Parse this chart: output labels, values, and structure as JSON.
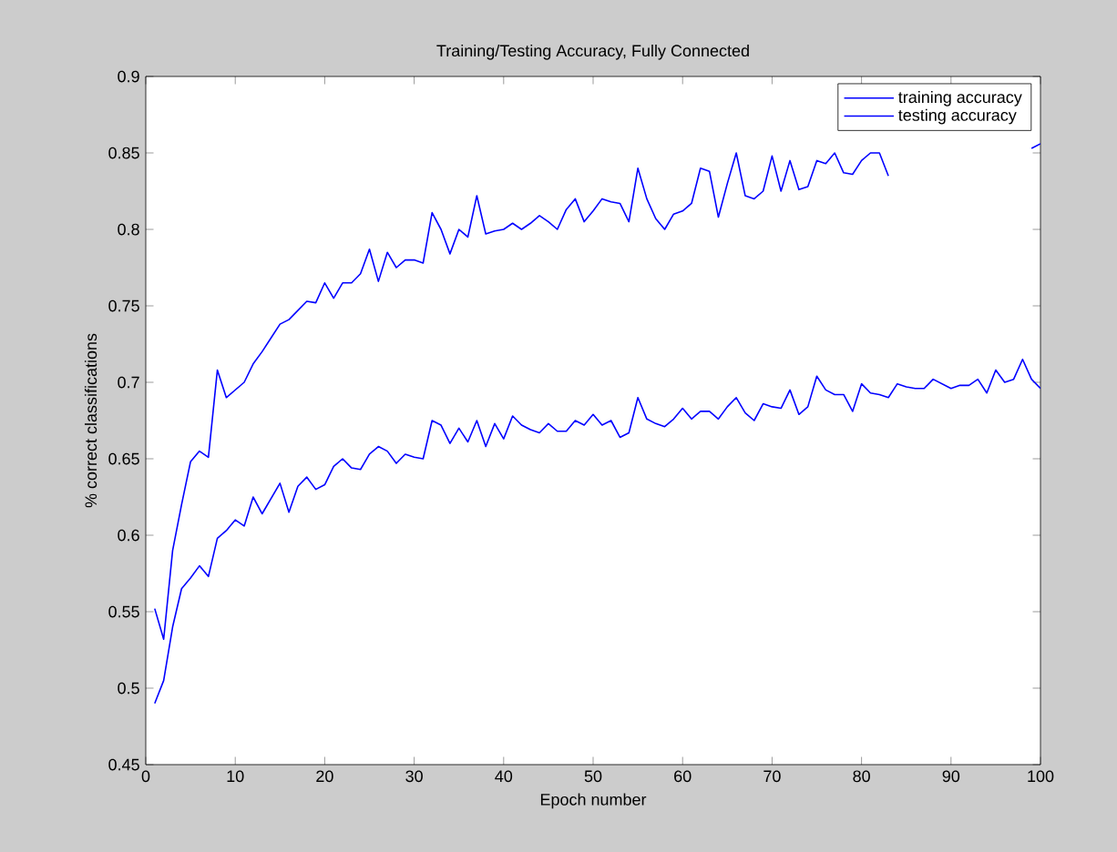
{
  "chart_data": {
    "type": "line",
    "title": "Training/Testing Accuracy, Fully Connected",
    "xlabel": "Epoch number",
    "ylabel": "% correct classifications",
    "x": [
      1,
      2,
      3,
      4,
      5,
      6,
      7,
      8,
      9,
      10,
      11,
      12,
      13,
      14,
      15,
      16,
      17,
      18,
      19,
      20,
      21,
      22,
      23,
      24,
      25,
      26,
      27,
      28,
      29,
      30,
      31,
      32,
      33,
      34,
      35,
      36,
      37,
      38,
      39,
      40,
      41,
      42,
      43,
      44,
      45,
      46,
      47,
      48,
      49,
      50,
      51,
      52,
      53,
      54,
      55,
      56,
      57,
      58,
      59,
      60,
      61,
      62,
      63,
      64,
      65,
      66,
      67,
      68,
      69,
      70,
      71,
      72,
      73,
      74,
      75,
      76,
      77,
      78,
      79,
      80,
      81,
      82,
      83,
      84,
      85,
      86,
      87,
      88,
      89,
      90,
      91,
      92,
      93,
      94,
      95,
      96,
      97,
      98,
      99,
      100
    ],
    "series": [
      {
        "name": "training accuracy",
        "color": "#0000ff",
        "values": [
          0.552,
          0.532,
          0.59,
          0.62,
          0.648,
          0.655,
          0.651,
          0.708,
          0.69,
          0.695,
          0.7,
          0.712,
          0.72,
          0.729,
          0.738,
          0.741,
          0.747,
          0.753,
          0.752,
          0.765,
          0.755,
          0.765,
          0.765,
          0.771,
          0.787,
          0.766,
          0.785,
          0.775,
          0.78,
          0.78,
          0.778,
          0.811,
          0.8,
          0.784,
          0.8,
          0.795,
          0.822,
          0.797,
          0.799,
          0.8,
          0.804,
          0.8,
          0.804,
          0.809,
          0.805,
          0.8,
          0.813,
          0.82,
          0.805,
          0.812,
          0.82,
          0.818,
          0.817,
          0.805,
          0.84,
          0.82,
          0.807,
          0.8,
          0.81,
          0.812,
          0.817,
          0.84,
          0.838,
          0.808,
          0.83,
          0.85,
          0.822,
          0.82,
          0.825,
          0.848,
          0.825,
          0.845,
          0.826,
          0.828,
          0.845,
          0.843,
          0.85,
          0.837,
          0.836,
          0.845,
          0.85,
          0.85,
          0.835,
          null,
          null,
          null,
          null,
          null,
          null,
          null,
          null,
          null,
          null,
          null,
          null,
          null,
          null,
          null,
          0.853,
          0.856
        ]
      },
      {
        "name": "testing accuracy",
        "color": "#0000ff",
        "values": [
          0.49,
          0.505,
          0.54,
          0.565,
          0.572,
          0.58,
          0.573,
          0.598,
          0.603,
          0.61,
          0.606,
          0.625,
          0.614,
          0.624,
          0.634,
          0.615,
          0.632,
          0.638,
          0.63,
          0.633,
          0.645,
          0.65,
          0.644,
          0.643,
          0.653,
          0.658,
          0.655,
          0.647,
          0.653,
          0.651,
          0.65,
          0.675,
          0.672,
          0.66,
          0.67,
          0.661,
          0.675,
          0.658,
          0.673,
          0.663,
          0.678,
          0.672,
          0.669,
          0.667,
          0.673,
          0.668,
          0.668,
          0.675,
          0.672,
          0.679,
          0.672,
          0.675,
          0.664,
          0.667,
          0.69,
          0.676,
          0.673,
          0.671,
          0.676,
          0.683,
          0.676,
          0.681,
          0.681,
          0.676,
          0.684,
          0.69,
          0.68,
          0.675,
          0.686,
          0.684,
          0.683,
          0.695,
          0.679,
          0.684,
          0.704,
          0.695,
          0.692,
          0.692,
          0.681,
          0.699,
          0.693,
          0.692,
          0.69,
          0.699,
          0.697,
          0.696,
          0.696,
          0.702,
          0.699,
          0.696,
          0.698,
          0.698,
          0.702,
          0.693,
          0.708,
          0.7,
          0.702,
          0.715,
          0.702,
          0.696
        ]
      }
    ],
    "xlim": [
      0,
      100
    ],
    "xticks": [
      0,
      10,
      20,
      30,
      40,
      50,
      60,
      70,
      80,
      90,
      100
    ],
    "ylim": [
      0.45,
      0.9
    ],
    "yticks": [
      0.45,
      0.5,
      0.55,
      0.6,
      0.65,
      0.7,
      0.75,
      0.8,
      0.85,
      0.9
    ],
    "grid": false,
    "legend": "top right",
    "marker": "none",
    "line_style": "solid"
  }
}
